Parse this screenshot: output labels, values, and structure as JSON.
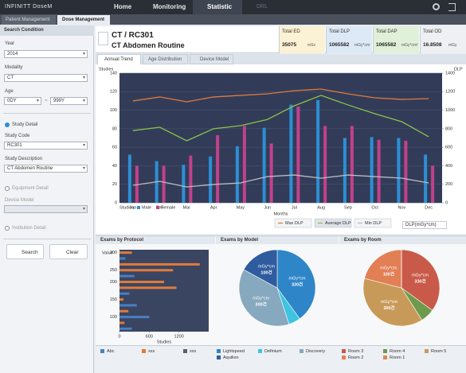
{
  "nav": {
    "logo": "INFINITT DoseM",
    "tabs": [
      "Home",
      "Monitoring",
      "Statistic",
      "DRL"
    ],
    "subtabs": [
      "Patient Management",
      "Dose Management"
    ]
  },
  "search": {
    "title": "Search Condition",
    "year_label": "Year",
    "year": "2014",
    "modality_label": "Modality",
    "modality": "CT",
    "age_label": "Age",
    "age_from": "0DY",
    "age_sep": "~",
    "age_to": "999Y",
    "study_detail": "Study Detail",
    "study_code_label": "Study Code",
    "study_code": "RC301",
    "study_desc_label": "Study Description",
    "study_desc": "CT Abdomen Routine",
    "equipment_detail": "Equipment Detail",
    "device_model_label": "Device Model",
    "institution_detail": "Institution Detail",
    "search_btn": "Search",
    "clear_btn": "Clear"
  },
  "header": {
    "code": "CT / RC301",
    "name": "CT Abdomen Routine"
  },
  "summary": [
    {
      "label": "Total ED",
      "value": "35075",
      "unit": "mSv"
    },
    {
      "label": "Total DLP",
      "value": "1065582",
      "unit": "mGy*cm"
    },
    {
      "label": "Total DAP",
      "value": "1065582",
      "unit": "mGy*cm²"
    },
    {
      "label": "Total OD",
      "value": "16.8508",
      "unit": "mGy"
    }
  ],
  "tabs": [
    "Annual Trend",
    "Age Distribution",
    "Device Model"
  ],
  "trend_select": "DLP(mGy*cm)",
  "panels": [
    "Exams by Protocol",
    "Exams by Model",
    "Exams by Room"
  ],
  "chart_data": [
    {
      "type": "bar",
      "y_label": "Studies",
      "y2_label": "DLP",
      "x_label": "Months",
      "legend_title": "Studies:",
      "categories": [
        "Jan",
        "Feb",
        "Mar",
        "Apr",
        "May",
        "Jun",
        "Jul",
        "Aug",
        "Sep",
        "Oct",
        "Nov",
        "Dec"
      ],
      "ylim": [
        0,
        140
      ],
      "yticks": [
        0,
        20,
        40,
        60,
        80,
        100,
        120,
        140
      ],
      "y2lim": [
        0,
        1400
      ],
      "y2ticks": [
        0,
        200,
        400,
        600,
        800,
        1000,
        1200,
        1400
      ],
      "grid": true,
      "series": [
        {
          "name": "Male",
          "color": "#2d8fd5",
          "values": [
            52,
            45,
            41,
            50,
            61,
            81,
            106,
            111,
            70,
            71,
            70,
            52
          ]
        },
        {
          "name": "Female",
          "color": "#c2418a",
          "values": [
            40,
            40,
            51,
            73,
            83,
            64,
            104,
            83,
            83,
            68,
            67,
            40
          ]
        },
        {
          "name": "Max DLP",
          "type": "line",
          "axis": "y2",
          "color": "#e07a3c",
          "values": [
            1100,
            1143,
            1091,
            1143,
            1160,
            1177,
            1211,
            1228,
            1177,
            1134,
            1117,
            1125
          ]
        },
        {
          "name": "Average DLP",
          "type": "line",
          "axis": "y2",
          "color": "#8bc34a",
          "values": [
            780,
            816,
            670,
            800,
            833,
            900,
            1048,
            1160,
            1057,
            962,
            876,
            713
          ]
        },
        {
          "name": "Min DLP",
          "type": "line",
          "axis": "y2",
          "color": "#b9bcc4",
          "values": [
            189,
            232,
            172,
            198,
            215,
            283,
            300,
            266,
            300,
            283,
            266,
            215
          ]
        }
      ]
    },
    {
      "type": "barh",
      "y_label": "Value",
      "x_label": "Studies",
      "categories": [
        "300",
        null,
        null,
        "250",
        null,
        "200",
        null,
        null,
        "150",
        null,
        null,
        "100",
        null,
        null
      ],
      "values": [
        250,
        120,
        1620,
        1080,
        300,
        900,
        1150,
        200,
        80,
        350,
        180,
        600,
        100,
        250
      ],
      "colors": [
        "#e07b39",
        "#4a7fc1",
        "#e07b39",
        "#e07b39",
        "#4a7fc1",
        "#e07b39",
        "#e07b39",
        "#4a7fc1",
        "#e07b39",
        "#4a7fc1",
        "#e07b39",
        "#4a7fc1",
        "#e07b39",
        "#4a7fc1"
      ],
      "xlim": [
        0,
        1800
      ],
      "xticks": [
        0,
        600,
        1200
      ],
      "legend": [
        {
          "name": "Abc",
          "color": "#4a7fc1"
        },
        {
          "name": "xxx",
          "color": "#e07b39"
        },
        {
          "name": "xxx",
          "color": "#5a6070"
        }
      ]
    },
    {
      "type": "pie",
      "categories": [
        "Lightspeed",
        "Definium",
        "Discovery",
        "Aquilion"
      ],
      "values": [
        40,
        5,
        38,
        17
      ],
      "colors": [
        "#2e86c8",
        "#3ec4e0",
        "#86a9bf",
        "#2f5c9e"
      ],
      "slice_unit": "mGy*cm",
      "slice_labels": [
        "330건",
        null,
        "300건",
        "100건"
      ]
    },
    {
      "type": "pie",
      "categories": [
        "Room 3",
        "Room 4",
        "Room 5",
        "Room 2",
        "Room 1"
      ],
      "values": [
        35,
        6,
        38,
        21,
        0
      ],
      "colors": [
        "#c95a4a",
        "#6e9a4c",
        "#c89a5a",
        "#e27f55",
        "#d98a4a"
      ],
      "slice_unit": "mGy*cm",
      "slice_labels": [
        "330건",
        null,
        "300건",
        "100건",
        null
      ]
    }
  ]
}
